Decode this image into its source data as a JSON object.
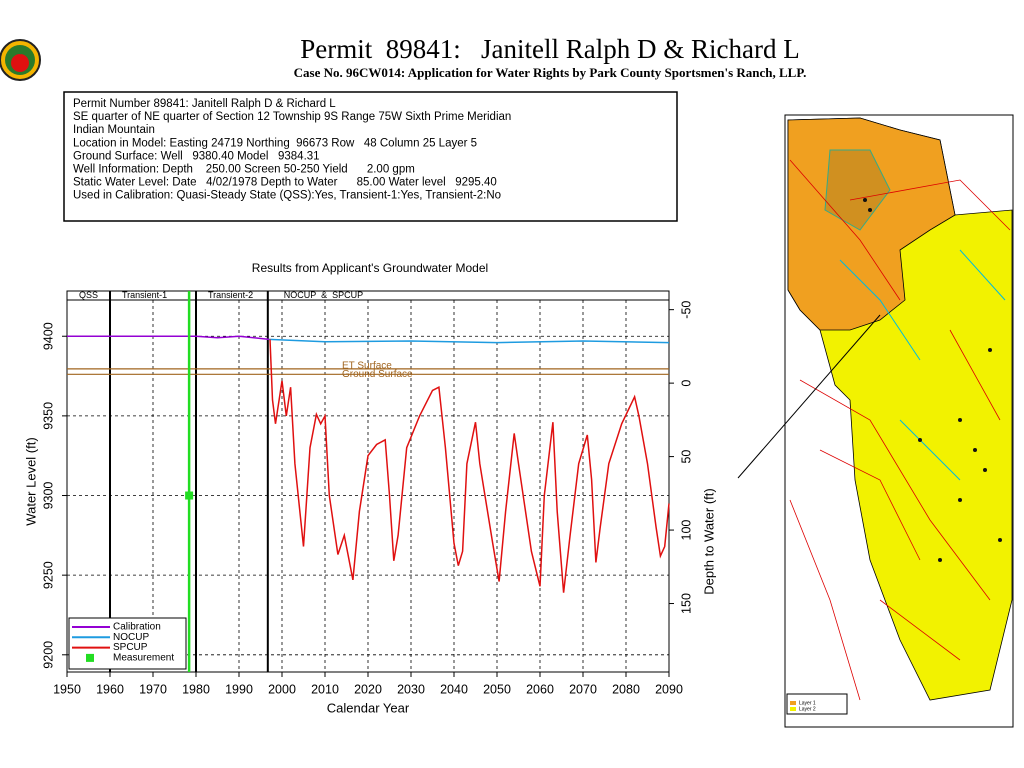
{
  "header": {
    "title": "Permit  89841:   Janitell Ralph D & Richard L",
    "subtitle": "Case No. 96CW014: Application for Water Rights by Park County Sportsmen's Ranch, LLP."
  },
  "info_box": {
    "lines": [
      "Permit Number 89841: Janitell Ralph D & Richard L",
      "SE quarter of NE quarter of Section 12 Township 9S Range 75W Sixth Prime Meridian",
      "Indian Mountain",
      "Location in Model: Easting 24719 Northing  96673 Row   48 Column 25 Layer 5",
      "Ground Surface: Well   9380.40 Model   9384.31",
      "Well Information: Depth    250.00 Screen 50-250 Yield      2.00 gpm",
      "Static Water Level: Date   4/02/1978 Depth to Water      85.00 Water level   9295.40",
      "Used in Calibration: Quasi-Steady State (QSS):Yes, Transient-1:Yes, Transient-2:No"
    ]
  },
  "chart_data": {
    "type": "line",
    "title": "Results from Applicant's Groundwater Model",
    "x_label": "Calendar Year",
    "y_label": "Water Level (ft)",
    "y2_label": "Depth to Water (ft)",
    "xlim": [
      1950,
      2090
    ],
    "xticks": [
      1950,
      1960,
      1970,
      1980,
      1990,
      2000,
      2010,
      2020,
      2030,
      2040,
      2050,
      2060,
      2070,
      2080,
      2090
    ],
    "ylim": [
      9189.2,
      9428.4
    ],
    "yticks": [
      9200,
      9250,
      9300,
      9350,
      9400
    ],
    "y2lim": [
      -62.7,
      196.6
    ],
    "y2ticks": [
      -50,
      0,
      50,
      100,
      150
    ],
    "y2_inverted": true,
    "grid": true,
    "periods": [
      {
        "label": "QSS",
        "start": 1950,
        "end": 1960
      },
      {
        "label": "Transient-1",
        "start": 1960,
        "end": 1980
      },
      {
        "label": "Transient-2",
        "start": 1980,
        "end": 1996.7
      },
      {
        "label": "NOCUP  &  SPCUP",
        "start": 1996.7,
        "end": 2090
      }
    ],
    "reference_lines": [
      {
        "label": "ET Surface",
        "value": 9379.5,
        "color": "#a0641e"
      },
      {
        "label": "Ground Surface",
        "value": 9376.1,
        "color": "#a0641e"
      }
    ],
    "series": [
      {
        "name": "Calibration",
        "color": "#9400d3",
        "x": [
          1950,
          1980,
          1985,
          1990,
          1997
        ],
        "values": [
          9400,
          9400,
          9399,
          9400,
          9398
        ]
      },
      {
        "name": "NOCUP",
        "color": "#1e9be0",
        "x": [
          1997,
          2010,
          2030,
          2050,
          2070,
          2090
        ],
        "values": [
          9398,
          9396.5,
          9397,
          9396,
          9397,
          9396
        ]
      },
      {
        "name": "SPCUP",
        "color": "#e01010",
        "x": [
          1997.2,
          1997.8,
          1998.5,
          2000,
          2001,
          2002,
          2003,
          2005,
          2006.5,
          2008,
          2009,
          2010,
          2011,
          2013,
          2014.5,
          2016.5,
          2018,
          2020,
          2022,
          2024,
          2025,
          2026,
          2027,
          2029,
          2032,
          2035,
          2036.5,
          2038,
          2040,
          2041,
          2042,
          2043,
          2045,
          2046,
          2049,
          2050.5,
          2052,
          2054,
          2055,
          2058,
          2060,
          2061,
          2063,
          2064,
          2065.5,
          2067,
          2069,
          2071,
          2072,
          2073,
          2074,
          2076,
          2079,
          2082,
          2083,
          2085,
          2087,
          2088,
          2089,
          2090
        ],
        "values": [
          9398,
          9360,
          9345,
          9372,
          9350,
          9368,
          9320,
          9268,
          9330,
          9351,
          9345,
          9350,
          9300,
          9263,
          9275,
          9247,
          9290,
          9325,
          9332,
          9335,
          9300,
          9259,
          9275,
          9330,
          9350,
          9366,
          9368,
          9330,
          9270,
          9256,
          9265,
          9320,
          9346,
          9320,
          9270,
          9246,
          9290,
          9339,
          9320,
          9265,
          9243,
          9300,
          9346,
          9290,
          9239,
          9275,
          9320,
          9338,
          9310,
          9258,
          9280,
          9320,
          9345,
          9362,
          9350,
          9320,
          9280,
          9262,
          9268,
          9295
        ]
      },
      {
        "name": "Measurement",
        "color": "#22dd22",
        "x": [
          1978.4
        ],
        "values": [
          9300
        ]
      }
    ]
  },
  "map": {
    "legend": [
      "Layer 1",
      "Layer 2"
    ]
  }
}
